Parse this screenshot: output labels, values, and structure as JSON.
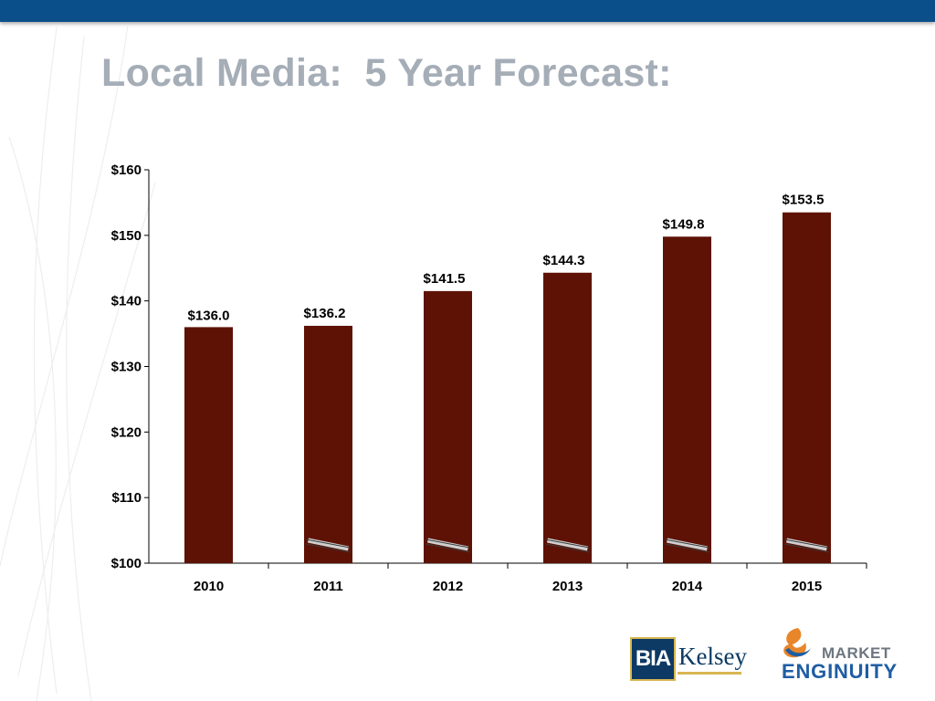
{
  "header": {
    "title": "Local Media:  5 Year Forecast:"
  },
  "chart_data": {
    "type": "bar",
    "title": "",
    "xlabel": "",
    "ylabel": "",
    "ylim": [
      100,
      160
    ],
    "y_ticks": [
      "$100",
      "$110",
      "$120",
      "$130",
      "$140",
      "$150",
      "$160"
    ],
    "y_tick_values": [
      100,
      110,
      120,
      130,
      140,
      150,
      160
    ],
    "categories": [
      "2010",
      "2011",
      "2012",
      "2013",
      "2014",
      "2015"
    ],
    "values": [
      136.0,
      136.2,
      141.5,
      144.3,
      149.8,
      153.5
    ],
    "value_labels": [
      "$136.0",
      "$136.2",
      "$141.5",
      "$144.3",
      "$149.8",
      "$153.5"
    ],
    "bar_color": "#5e1206",
    "axis_break_marks": true,
    "grid": false,
    "legend": "none"
  },
  "logos": {
    "bia_kelsey": {
      "box_text": "BIA",
      "word_text": "Kelsey"
    },
    "market_enginuity": {
      "line1": "MARKET",
      "line2": "ENGINUITY"
    }
  },
  "colors": {
    "top_bar": "#0b4f8a",
    "title": "#a5adb7",
    "bar": "#5e1206"
  }
}
